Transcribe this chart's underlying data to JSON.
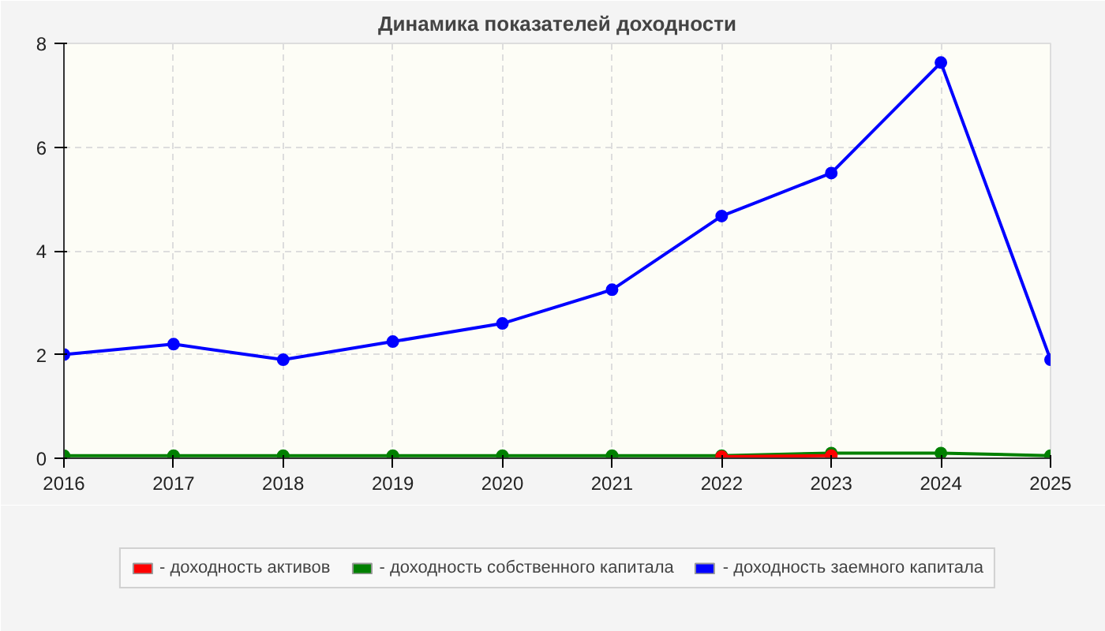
{
  "chart_data": {
    "type": "line",
    "title": "Динамика показателей доходности",
    "x": [
      2016,
      2017,
      2018,
      2019,
      2020,
      2021,
      2022,
      2023,
      2024,
      2025
    ],
    "series": [
      {
        "name": "- доходность активов",
        "color": "#ff0000",
        "values": [
          null,
          null,
          null,
          null,
          null,
          null,
          0.03,
          0.05,
          null,
          null
        ]
      },
      {
        "name": "- доходность собственного капитала",
        "color": "#008000",
        "values": [
          0.05,
          0.05,
          0.05,
          0.05,
          0.05,
          0.05,
          0.05,
          0.1,
          0.1,
          0.05
        ]
      },
      {
        "name": "- доходность заемного капитала",
        "color": "#0000ff",
        "values": [
          2.0,
          2.2,
          1.9,
          2.25,
          2.6,
          3.25,
          4.67,
          5.5,
          7.63,
          1.9
        ]
      }
    ],
    "xlim": [
      2016,
      2025
    ],
    "xticks": [
      2016,
      2017,
      2018,
      2019,
      2020,
      2021,
      2022,
      2023,
      2024,
      2025
    ],
    "ylim": [
      0,
      8
    ],
    "yticks": [
      0,
      2,
      4,
      6,
      8
    ],
    "grid": true,
    "legend": "bottom",
    "marker": "circle",
    "line_style": "solid"
  }
}
